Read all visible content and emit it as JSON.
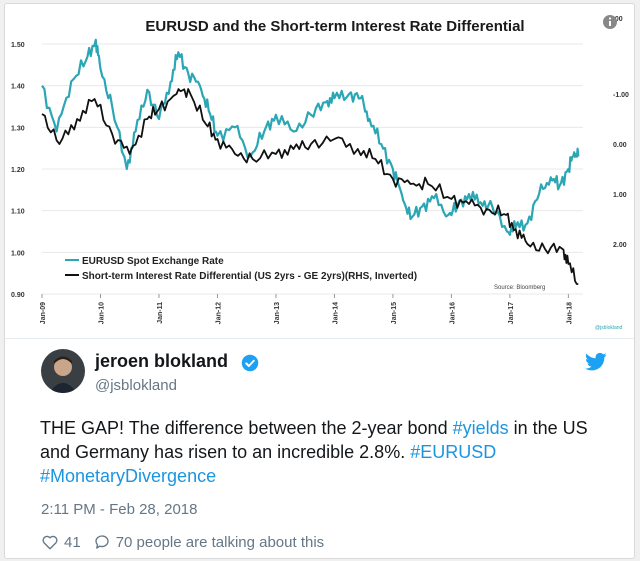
{
  "chart_data": {
    "type": "line",
    "title": "EURUSD and the Short-term Interest Rate Differential",
    "x_ticks": [
      "Jan-09",
      "Jan-10",
      "Jan-11",
      "Jan-12",
      "Jan-13",
      "Jan-14",
      "Jan-15",
      "Jan-16",
      "Jan-17",
      "Jan-18"
    ],
    "y_left_ticks": [
      "1.50",
      "1.40",
      "1.30",
      "1.20",
      "1.10",
      "1.00",
      "0.90"
    ],
    "y_left_range": [
      0.9,
      1.5
    ],
    "y_right_ticks": [
      "3.00",
      "-1.00",
      "0.00",
      "1.00",
      "2.00"
    ],
    "y_right_range": [
      -2.0,
      3.0
    ],
    "y_right_inverted": true,
    "source": "Source: Bloomberg",
    "watermark": "@jsblokland",
    "series": [
      {
        "name": "EURUSD Spot Exchange Rate",
        "color": "#2ba6b5",
        "axis": "left",
        "x": [
          2009.0,
          2009.25,
          2009.5,
          2009.75,
          2009.92,
          2010.0,
          2010.2,
          2010.45,
          2010.6,
          2010.8,
          2011.0,
          2011.2,
          2011.33,
          2011.5,
          2011.7,
          2011.85,
          2012.0,
          2012.3,
          2012.56,
          2012.8,
          2013.0,
          2013.3,
          2013.6,
          2013.85,
          2014.0,
          2014.25,
          2014.45,
          2014.6,
          2014.8,
          2015.0,
          2015.15,
          2015.3,
          2015.5,
          2015.7,
          2015.95,
          2016.1,
          2016.3,
          2016.5,
          2016.7,
          2016.95,
          2017.1,
          2017.3,
          2017.5,
          2017.7,
          2017.85,
          2018.0,
          2018.1,
          2018.17
        ],
        "y": [
          1.4,
          1.29,
          1.41,
          1.46,
          1.51,
          1.44,
          1.35,
          1.2,
          1.29,
          1.39,
          1.32,
          1.41,
          1.48,
          1.43,
          1.4,
          1.34,
          1.28,
          1.3,
          1.23,
          1.29,
          1.33,
          1.29,
          1.33,
          1.36,
          1.37,
          1.38,
          1.37,
          1.32,
          1.26,
          1.2,
          1.14,
          1.08,
          1.11,
          1.13,
          1.09,
          1.11,
          1.14,
          1.12,
          1.11,
          1.05,
          1.06,
          1.07,
          1.14,
          1.18,
          1.16,
          1.2,
          1.24,
          1.23
        ]
      },
      {
        "name": "Short-term Interest Rate Differential (US 2yrs - GE 2yrs)(RHS, Inverted)",
        "color": "#111111",
        "axis": "right",
        "x": [
          2009.0,
          2009.3,
          2009.6,
          2009.9,
          2010.2,
          2010.5,
          2010.8,
          2011.0,
          2011.3,
          2011.5,
          2011.8,
          2012.0,
          2012.3,
          2012.6,
          2013.0,
          2013.3,
          2013.6,
          2014.0,
          2014.4,
          2014.7,
          2015.0,
          2015.3,
          2015.6,
          2016.0,
          2016.3,
          2016.6,
          2016.9,
          2017.1,
          2017.3,
          2017.6,
          2017.9,
          2018.0,
          2018.17
        ],
        "y": [
          -0.6,
          0.0,
          -0.5,
          -0.9,
          -0.2,
          0.2,
          -0.5,
          -0.7,
          -1.0,
          -1.1,
          -0.4,
          -0.1,
          0.2,
          0.3,
          0.2,
          0.1,
          0.0,
          -0.1,
          0.1,
          0.3,
          0.7,
          0.8,
          0.8,
          1.1,
          1.2,
          1.3,
          1.4,
          1.7,
          2.0,
          2.1,
          2.1,
          2.4,
          2.8
        ]
      }
    ]
  },
  "tweet": {
    "name": "jeroen blokland",
    "handle": "@jsblokland",
    "text_1": "THE GAP! The difference between the 2-year bond ",
    "tag_1": "#yields",
    "text_2": " in the US and Germany has risen to an incredible 2.8%. ",
    "tag_2": "#EURUSD",
    "tag_3": "#MonetaryDivergence",
    "timestamp": "2:11 PM - Feb 28, 2018",
    "likes": "41",
    "talking": "70 people are talking about this",
    "accent_color": "#1da1f2"
  }
}
